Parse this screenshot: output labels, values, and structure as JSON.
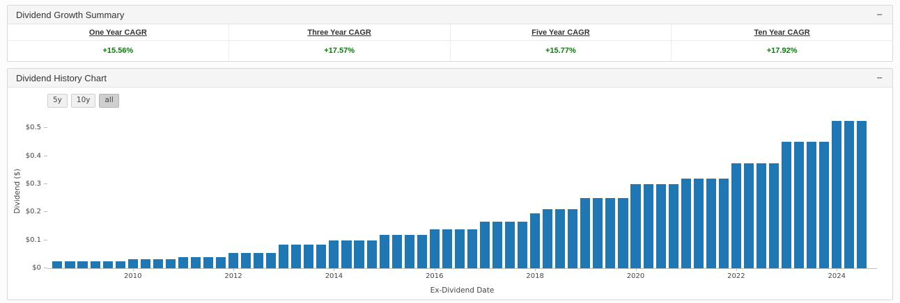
{
  "summary": {
    "title": "Dividend Growth Summary",
    "collapse_label": "−",
    "value_color": "#008000",
    "columns": [
      {
        "label": "One Year CAGR",
        "value": "+15.56%"
      },
      {
        "label": "Three Year CAGR",
        "value": "+17.57%"
      },
      {
        "label": "Five Year CAGR",
        "value": "+15.77%"
      },
      {
        "label": "Ten Year CAGR",
        "value": "+17.92%"
      }
    ]
  },
  "history": {
    "title": "Dividend History Chart",
    "collapse_label": "−",
    "range_buttons": [
      {
        "label": "5y",
        "selected": false
      },
      {
        "label": "10y",
        "selected": false
      },
      {
        "label": "all",
        "selected": true
      }
    ]
  },
  "chart_data": {
    "type": "bar",
    "title": "",
    "xlabel": "Ex-Dividend Date",
    "ylabel": "Dividend ($)",
    "bar_color": "#1f77b4",
    "grid": false,
    "legend": false,
    "ylim": [
      0,
      0.55
    ],
    "xlim": [
      2008.3,
      2024.8
    ],
    "y_ticks": [
      {
        "value": 0.0,
        "label": "$0"
      },
      {
        "value": 0.1,
        "label": "$0.1"
      },
      {
        "value": 0.2,
        "label": "$0.2"
      },
      {
        "value": 0.3,
        "label": "$0.3"
      },
      {
        "value": 0.4,
        "label": "$0.4"
      },
      {
        "value": 0.5,
        "label": "$0.5"
      }
    ],
    "x_ticks": [
      {
        "value": 2010,
        "label": "2010"
      },
      {
        "value": 2012,
        "label": "2012"
      },
      {
        "value": 2014,
        "label": "2014"
      },
      {
        "value": 2016,
        "label": "2016"
      },
      {
        "value": 2018,
        "label": "2018"
      },
      {
        "value": 2020,
        "label": "2020"
      },
      {
        "value": 2022,
        "label": "2022"
      },
      {
        "value": 2024,
        "label": "2024"
      }
    ],
    "x": [
      2008.5,
      2008.75,
      2009,
      2009.25,
      2009.5,
      2009.75,
      2010,
      2010.25,
      2010.5,
      2010.75,
      2011,
      2011.25,
      2011.5,
      2011.75,
      2012,
      2012.25,
      2012.5,
      2012.75,
      2013,
      2013.25,
      2013.5,
      2013.75,
      2014,
      2014.25,
      2014.5,
      2014.75,
      2015,
      2015.25,
      2015.5,
      2015.75,
      2016,
      2016.25,
      2016.5,
      2016.75,
      2017,
      2017.25,
      2017.5,
      2017.75,
      2018,
      2018.25,
      2018.5,
      2018.75,
      2019,
      2019.25,
      2019.5,
      2019.75,
      2020,
      2020.25,
      2020.5,
      2020.75,
      2021,
      2021.25,
      2021.5,
      2021.75,
      2022,
      2022.25,
      2022.5,
      2022.75,
      2023,
      2023.25,
      2023.5,
      2023.75,
      2024,
      2024.25,
      2024.5
    ],
    "values": [
      0.025,
      0.025,
      0.025,
      0.025,
      0.025,
      0.025,
      0.0325,
      0.0325,
      0.0325,
      0.0325,
      0.04,
      0.04,
      0.04,
      0.04,
      0.055,
      0.055,
      0.055,
      0.055,
      0.085,
      0.085,
      0.085,
      0.085,
      0.1,
      0.1,
      0.1,
      0.1,
      0.12,
      0.12,
      0.12,
      0.12,
      0.14,
      0.14,
      0.14,
      0.14,
      0.165,
      0.165,
      0.165,
      0.165,
      0.195,
      0.21,
      0.21,
      0.21,
      0.25,
      0.25,
      0.25,
      0.25,
      0.3,
      0.3,
      0.3,
      0.3,
      0.32,
      0.32,
      0.32,
      0.32,
      0.375,
      0.375,
      0.375,
      0.375,
      0.45,
      0.45,
      0.45,
      0.45,
      0.525,
      0.525,
      0.525
    ],
    "bar_slot_years": 0.25,
    "bar_fill_ratio": 0.78
  }
}
